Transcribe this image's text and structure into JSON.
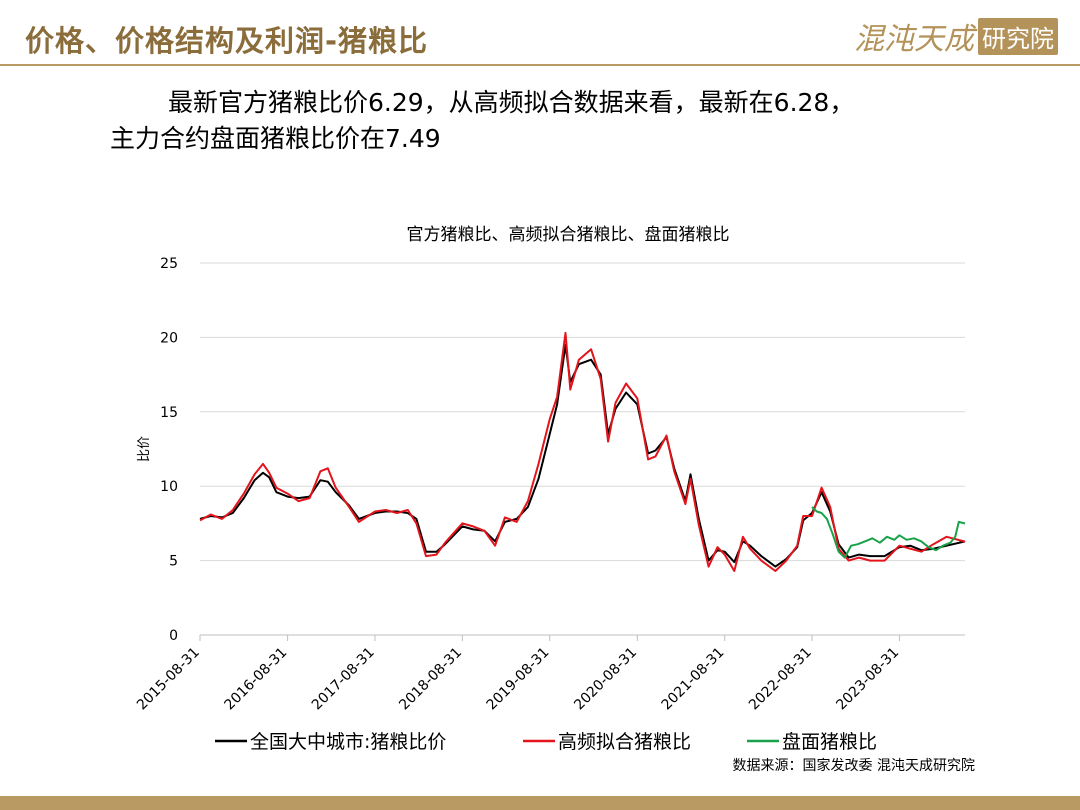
{
  "header": {
    "title": "价格、价格结构及利润-猪粮比",
    "logo_text": "混沌天成",
    "logo_box": "研究院"
  },
  "summary": {
    "line1": "最新官方猪粮比价6.29，从高频拟合数据来看，最新在6.28，",
    "line2": "主力合约盘面猪粮比价在7.49"
  },
  "colors": {
    "accent": "#b89a62",
    "series_official": "#000000",
    "series_fit": "#e3141b",
    "series_futures": "#1aa24a"
  },
  "chart_data": {
    "type": "line",
    "title": "官方猪粮比、高频拟合猪粮比、盘面猪粮比",
    "ylabel": "比价",
    "xlabel": "",
    "ylim": [
      0,
      25
    ],
    "yticks": [
      0,
      5,
      10,
      15,
      20,
      25
    ],
    "xlim": [
      "2015-08-31",
      "2024-05-31"
    ],
    "xticks": [
      "2015-08-31",
      "2016-08-31",
      "2017-08-31",
      "2018-08-31",
      "2019-08-31",
      "2020-08-31",
      "2021-08-31",
      "2022-08-31",
      "2023-08-31"
    ],
    "grid": "horizontal",
    "legend_position": "bottom",
    "source": "数据来源：国家发改委 混沌天成研究院",
    "series": [
      {
        "name": "全国大中城市:猪粮比价",
        "color": "#000000",
        "points": [
          [
            "2015-08-31",
            7.8
          ],
          [
            "2015-10-15",
            8.0
          ],
          [
            "2015-12-01",
            7.9
          ],
          [
            "2016-01-15",
            8.2
          ],
          [
            "2016-03-01",
            9.2
          ],
          [
            "2016-04-15",
            10.4
          ],
          [
            "2016-05-20",
            10.9
          ],
          [
            "2016-06-15",
            10.6
          ],
          [
            "2016-07-15",
            9.6
          ],
          [
            "2016-08-31",
            9.3
          ],
          [
            "2016-10-15",
            9.2
          ],
          [
            "2016-12-01",
            9.3
          ],
          [
            "2017-01-15",
            10.4
          ],
          [
            "2017-02-15",
            10.3
          ],
          [
            "2017-03-20",
            9.6
          ],
          [
            "2017-05-15",
            8.7
          ],
          [
            "2017-06-25",
            7.8
          ],
          [
            "2017-08-31",
            8.2
          ],
          [
            "2017-10-15",
            8.3
          ],
          [
            "2017-12-01",
            8.3
          ],
          [
            "2018-01-15",
            8.2
          ],
          [
            "2018-02-20",
            7.8
          ],
          [
            "2018-04-01",
            5.6
          ],
          [
            "2018-05-15",
            5.6
          ],
          [
            "2018-06-20",
            6.1
          ],
          [
            "2018-08-31",
            7.3
          ],
          [
            "2018-10-15",
            7.1
          ],
          [
            "2018-12-01",
            7.0
          ],
          [
            "2019-01-15",
            6.3
          ],
          [
            "2019-02-25",
            7.6
          ],
          [
            "2019-04-15",
            7.8
          ],
          [
            "2019-06-01",
            8.6
          ],
          [
            "2019-07-15",
            10.5
          ],
          [
            "2019-08-31",
            13.5
          ],
          [
            "2019-10-01",
            15.5
          ],
          [
            "2019-11-05",
            19.5
          ],
          [
            "2019-11-25",
            17.0
          ],
          [
            "2019-12-31",
            18.2
          ],
          [
            "2020-02-20",
            18.5
          ],
          [
            "2020-03-31",
            17.5
          ],
          [
            "2020-05-01",
            13.5
          ],
          [
            "2020-06-01",
            15.2
          ],
          [
            "2020-07-15",
            16.3
          ],
          [
            "2020-08-31",
            15.5
          ],
          [
            "2020-10-15",
            12.2
          ],
          [
            "2020-11-15",
            12.4
          ],
          [
            "2020-12-31",
            13.3
          ],
          [
            "2021-02-01",
            11.2
          ],
          [
            "2021-03-20",
            9.0
          ],
          [
            "2021-04-10",
            10.8
          ],
          [
            "2021-05-15",
            7.8
          ],
          [
            "2021-06-25",
            5.0
          ],
          [
            "2021-08-01",
            5.7
          ],
          [
            "2021-08-31",
            5.6
          ],
          [
            "2021-10-10",
            4.9
          ],
          [
            "2021-11-15",
            6.3
          ],
          [
            "2021-12-15",
            6.0
          ],
          [
            "2022-01-31",
            5.3
          ],
          [
            "2022-03-31",
            4.6
          ],
          [
            "2022-05-15",
            5.1
          ],
          [
            "2022-06-30",
            5.9
          ],
          [
            "2022-07-25",
            7.7
          ],
          [
            "2022-08-31",
            8.2
          ],
          [
            "2022-10-10",
            9.6
          ],
          [
            "2022-11-15",
            8.3
          ],
          [
            "2022-12-20",
            6.1
          ],
          [
            "2023-01-31",
            5.2
          ],
          [
            "2023-03-15",
            5.4
          ],
          [
            "2023-05-01",
            5.3
          ],
          [
            "2023-06-30",
            5.3
          ],
          [
            "2023-08-31",
            5.9
          ],
          [
            "2023-10-15",
            6.0
          ],
          [
            "2023-12-01",
            5.7
          ],
          [
            "2024-01-20",
            5.8
          ],
          [
            "2024-03-15",
            6.0
          ],
          [
            "2024-05-31",
            6.29
          ]
        ]
      },
      {
        "name": "高频拟合猪粮比",
        "color": "#e3141b",
        "points": [
          [
            "2015-08-31",
            7.7
          ],
          [
            "2015-10-15",
            8.1
          ],
          [
            "2015-12-01",
            7.8
          ],
          [
            "2016-01-15",
            8.4
          ],
          [
            "2016-03-01",
            9.5
          ],
          [
            "2016-04-15",
            10.8
          ],
          [
            "2016-05-20",
            11.5
          ],
          [
            "2016-06-15",
            10.9
          ],
          [
            "2016-07-15",
            9.9
          ],
          [
            "2016-08-31",
            9.5
          ],
          [
            "2016-10-15",
            9.0
          ],
          [
            "2016-12-01",
            9.2
          ],
          [
            "2017-01-15",
            11.0
          ],
          [
            "2017-02-15",
            11.2
          ],
          [
            "2017-03-20",
            9.9
          ],
          [
            "2017-05-15",
            8.6
          ],
          [
            "2017-06-25",
            7.6
          ],
          [
            "2017-08-31",
            8.3
          ],
          [
            "2017-10-15",
            8.4
          ],
          [
            "2017-12-01",
            8.2
          ],
          [
            "2018-01-15",
            8.4
          ],
          [
            "2018-02-20",
            7.5
          ],
          [
            "2018-04-01",
            5.3
          ],
          [
            "2018-05-15",
            5.4
          ],
          [
            "2018-06-20",
            6.2
          ],
          [
            "2018-08-31",
            7.5
          ],
          [
            "2018-10-15",
            7.3
          ],
          [
            "2018-12-01",
            7.0
          ],
          [
            "2019-01-15",
            6.0
          ],
          [
            "2019-02-25",
            7.9
          ],
          [
            "2019-04-15",
            7.6
          ],
          [
            "2019-06-01",
            9.0
          ],
          [
            "2019-07-15",
            11.5
          ],
          [
            "2019-08-31",
            14.5
          ],
          [
            "2019-10-01",
            16.0
          ],
          [
            "2019-11-05",
            20.3
          ],
          [
            "2019-11-25",
            16.5
          ],
          [
            "2019-12-31",
            18.5
          ],
          [
            "2020-02-20",
            19.2
          ],
          [
            "2020-03-31",
            17.2
          ],
          [
            "2020-05-01",
            13.0
          ],
          [
            "2020-06-01",
            15.6
          ],
          [
            "2020-07-15",
            16.9
          ],
          [
            "2020-08-31",
            15.9
          ],
          [
            "2020-10-15",
            11.8
          ],
          [
            "2020-11-15",
            12.0
          ],
          [
            "2020-12-31",
            13.4
          ],
          [
            "2021-02-01",
            11.0
          ],
          [
            "2021-03-20",
            8.8
          ],
          [
            "2021-04-10",
            10.5
          ],
          [
            "2021-05-15",
            7.4
          ],
          [
            "2021-06-25",
            4.6
          ],
          [
            "2021-08-01",
            5.9
          ],
          [
            "2021-08-31",
            5.4
          ],
          [
            "2021-10-10",
            4.3
          ],
          [
            "2021-11-15",
            6.6
          ],
          [
            "2021-12-15",
            5.8
          ],
          [
            "2022-01-31",
            5.0
          ],
          [
            "2022-03-31",
            4.3
          ],
          [
            "2022-05-15",
            5.0
          ],
          [
            "2022-06-30",
            6.0
          ],
          [
            "2022-07-25",
            8.0
          ],
          [
            "2022-08-31",
            8.0
          ],
          [
            "2022-10-10",
            9.9
          ],
          [
            "2022-11-15",
            8.6
          ],
          [
            "2022-12-20",
            5.8
          ],
          [
            "2023-01-31",
            5.0
          ],
          [
            "2023-03-15",
            5.2
          ],
          [
            "2023-05-01",
            5.0
          ],
          [
            "2023-06-30",
            5.0
          ],
          [
            "2023-08-31",
            6.0
          ],
          [
            "2023-10-15",
            5.8
          ],
          [
            "2023-12-01",
            5.6
          ],
          [
            "2024-01-20",
            6.1
          ],
          [
            "2024-03-15",
            6.6
          ],
          [
            "2024-05-31",
            6.28
          ]
        ]
      },
      {
        "name": "盘面猪粮比",
        "color": "#1aa24a",
        "points": [
          [
            "2022-08-31",
            8.6
          ],
          [
            "2022-09-20",
            8.3
          ],
          [
            "2022-10-10",
            8.2
          ],
          [
            "2022-11-01",
            7.8
          ],
          [
            "2022-11-25",
            6.8
          ],
          [
            "2022-12-20",
            5.6
          ],
          [
            "2023-01-15",
            5.2
          ],
          [
            "2023-02-10",
            6.0
          ],
          [
            "2023-03-10",
            6.1
          ],
          [
            "2023-04-10",
            6.3
          ],
          [
            "2023-05-10",
            6.5
          ],
          [
            "2023-06-10",
            6.2
          ],
          [
            "2023-07-10",
            6.6
          ],
          [
            "2023-08-10",
            6.4
          ],
          [
            "2023-08-31",
            6.7
          ],
          [
            "2023-09-30",
            6.4
          ],
          [
            "2023-10-31",
            6.5
          ],
          [
            "2023-11-30",
            6.3
          ],
          [
            "2023-12-31",
            5.9
          ],
          [
            "2024-01-31",
            5.7
          ],
          [
            "2024-02-29",
            6.0
          ],
          [
            "2024-03-31",
            6.2
          ],
          [
            "2024-04-20",
            6.6
          ],
          [
            "2024-05-05",
            7.6
          ],
          [
            "2024-05-31",
            7.49
          ]
        ]
      }
    ]
  }
}
